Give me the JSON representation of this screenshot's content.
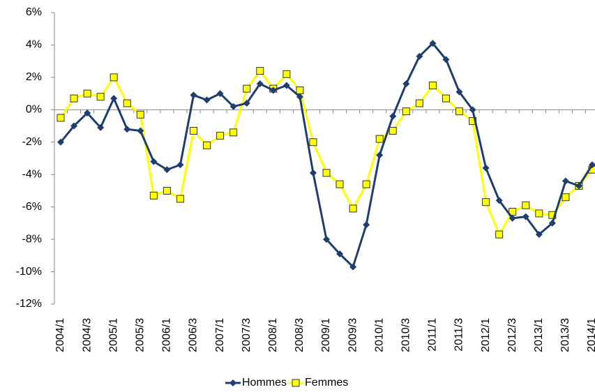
{
  "chart_data": {
    "type": "line",
    "categories": [
      "2004/1",
      null,
      "2004/3",
      null,
      "2005/1",
      null,
      "2005/3",
      null,
      "2006/1",
      null,
      "2006/3",
      null,
      "2007/1",
      null,
      "2007/3",
      null,
      "2008/1",
      null,
      "2008/3",
      null,
      "2009/1",
      null,
      "2009/3",
      null,
      "2010/1",
      null,
      "2010/3",
      null,
      "2011/1",
      null,
      "2011/3",
      null,
      "2012/1",
      null,
      "2012/3",
      null,
      "2013/1",
      null,
      "2013/3",
      null,
      "2014/1"
    ],
    "series": [
      {
        "name": "Hommes",
        "color": "#1f3e6e",
        "marker": "diamond",
        "values": [
          -2.0,
          -1.0,
          -0.2,
          -1.1,
          0.7,
          -1.2,
          -1.3,
          -3.2,
          -3.7,
          -3.4,
          0.9,
          0.6,
          1.0,
          0.2,
          0.4,
          1.6,
          1.2,
          1.5,
          0.8,
          -3.9,
          -8.0,
          -8.9,
          -9.7,
          -7.1,
          -2.8,
          -0.4,
          1.6,
          3.3,
          4.1,
          3.1,
          1.1,
          0.0,
          -3.6,
          -5.6,
          -6.7,
          -6.6,
          -7.7,
          -7.0,
          -4.4,
          -4.7,
          -3.4
        ]
      },
      {
        "name": "Femmes",
        "color": "#ffff00",
        "marker": "square",
        "values": [
          -0.5,
          0.7,
          1.0,
          0.8,
          2.0,
          0.4,
          -0.3,
          -5.3,
          -5.0,
          -5.5,
          -1.3,
          -2.2,
          -1.6,
          -1.4,
          1.3,
          2.4,
          1.3,
          2.2,
          1.2,
          -2.0,
          -3.9,
          -4.6,
          -6.1,
          -4.6,
          -1.8,
          -1.3,
          -0.1,
          0.4,
          1.5,
          0.7,
          -0.1,
          -0.7,
          -5.7,
          -7.7,
          -6.3,
          -5.9,
          -6.4,
          -6.5,
          -5.4,
          -4.7,
          -3.7
        ]
      }
    ],
    "ylim": [
      -12,
      6
    ],
    "yticks": [
      {
        "value": -12,
        "label": "-12%"
      },
      {
        "value": -10,
        "label": "-10%"
      },
      {
        "value": -8,
        "label": "-8%"
      },
      {
        "value": -6,
        "label": "-6%"
      },
      {
        "value": -4,
        "label": "-4%"
      },
      {
        "value": -2,
        "label": "-2%"
      },
      {
        "value": 0,
        "label": "0%"
      },
      {
        "value": 2,
        "label": "2%"
      },
      {
        "value": 4,
        "label": "4%"
      },
      {
        "value": 6,
        "label": "6%"
      }
    ],
    "legend": "bottom"
  }
}
